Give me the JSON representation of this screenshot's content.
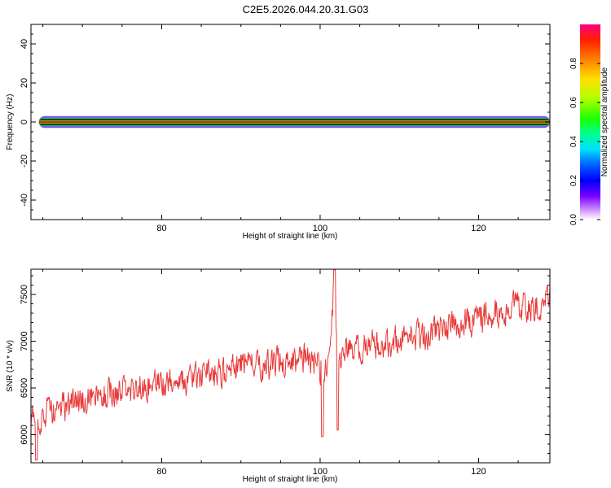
{
  "title": "C2E5.2026.044.20.31.G03",
  "chart_data": [
    {
      "type": "heatmap",
      "xlabel": "Height of straight line (km)",
      "ylabel": "Frequency (Hz)",
      "xlim": [
        63.5,
        129
      ],
      "ylim": [
        -50,
        50
      ],
      "xticks": [
        80,
        100,
        120
      ],
      "yticks": [
        -40,
        -20,
        0,
        20,
        40
      ],
      "colorbar": {
        "label": "Normalized spectral amplitude",
        "range": [
          0.0,
          1.0
        ],
        "ticks": [
          0.0,
          0.2,
          0.4,
          0.6,
          0.8
        ],
        "tick_labels": [
          "0.0",
          "0.2",
          "0.4",
          "0.6",
          "0.8"
        ]
      },
      "ridge": {
        "frequency": 0.0,
        "start": 64.5,
        "end": 129,
        "half_width_hz_by_amplitude": [
          [
            0.9,
            0.5
          ],
          [
            0.6,
            1.0
          ],
          [
            0.4,
            1.6
          ],
          [
            0.1,
            2.6
          ]
        ]
      }
    },
    {
      "type": "line",
      "xlabel": "Height of straight line (km)",
      "ylabel": "SNR (10 * v/v)",
      "xlim": [
        63.5,
        129
      ],
      "ylim": [
        5700,
        7770
      ],
      "xticks": [
        80,
        100,
        120
      ],
      "yticks": [
        6000,
        6500,
        7000,
        7500
      ],
      "series": [
        {
          "color": "#e83a3a",
          "x": [
            63.5,
            65,
            67,
            69,
            71,
            73,
            75,
            77,
            79,
            81,
            83,
            85,
            87,
            89,
            90,
            91,
            93,
            95,
            97,
            99,
            100,
            101,
            101.8,
            102.3,
            103,
            105,
            107,
            109,
            111,
            113,
            115,
            117,
            119,
            121,
            123,
            125,
            127,
            129
          ],
          "y": [
            6150,
            6200,
            6280,
            6330,
            6380,
            6420,
            6470,
            6500,
            6530,
            6560,
            6590,
            6620,
            6650,
            6680,
            6800,
            6720,
            6740,
            6770,
            6800,
            6830,
            6700,
            6800,
            7600,
            6750,
            6880,
            6920,
            6960,
            7000,
            7040,
            7080,
            7130,
            7170,
            7220,
            7260,
            7300,
            7350,
            7400,
            7450
          ],
          "noise_amplitude": 230
        }
      ]
    }
  ],
  "colors": {
    "series": "#e83a3a",
    "ridge_center": "#e82020",
    "frame": "#000000"
  }
}
